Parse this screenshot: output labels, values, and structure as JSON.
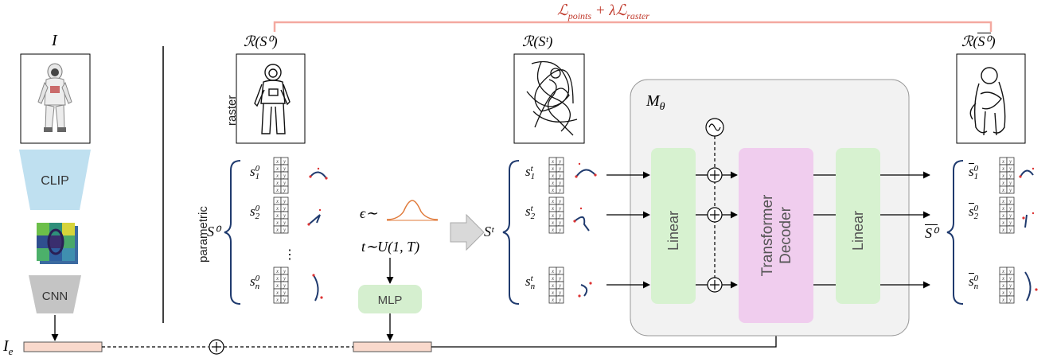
{
  "loss_label": "ℒ",
  "loss_points_sub": "points",
  "loss_plus_lambda": " + λℒ",
  "loss_raster_sub": "raster",
  "image_label": "I",
  "image_emb_label": "I",
  "image_emb_sub": "e",
  "render_s0": "ℛ(S⁰)",
  "render_st": "ℛ(Sᵗ)",
  "render_s0_hat_prefix": "ℛ(",
  "render_s0_hat_inner": "S⁰",
  "render_s0_hat_suffix": ")",
  "raster_label": "raster",
  "parametric_label": "parametric",
  "clip_label": "CLIP",
  "cnn_label": "CNN",
  "mlp_label": "MLP",
  "linear_label": "Linear",
  "transformer_line1": "Transformer",
  "transformer_line2": "Decoder",
  "model_label": "M",
  "model_sub": "θ",
  "S0": "S⁰",
  "St": "Sᵗ",
  "S0_hat": "S⁰",
  "s0_rows": [
    {
      "b": "s",
      "sup": "0",
      "sub": "1"
    },
    {
      "b": "s",
      "sup": "0",
      "sub": "2"
    },
    {
      "b": "s",
      "sup": "0",
      "sub": "n"
    }
  ],
  "st_rows": [
    {
      "b": "s",
      "sup": "t",
      "sub": "1"
    },
    {
      "b": "s",
      "sup": "t",
      "sub": "2"
    },
    {
      "b": "s",
      "sup": "t",
      "sub": "n"
    }
  ],
  "s0hat_rows": [
    {
      "b": "s",
      "sup": "0",
      "sub": "1"
    },
    {
      "b": "s",
      "sup": "0",
      "sub": "2"
    },
    {
      "b": "s",
      "sup": "0",
      "sub": "n"
    }
  ],
  "ellipsis": "⋮",
  "eps_label": "ϵ∼",
  "t_label": "t∼U(1, T)",
  "cell_x": "x",
  "cell_y": "y",
  "colors": {
    "loss": "#c0392b",
    "loss_bracket": "#f4a9a0",
    "clip": "#bfe0f0",
    "cnn": "#c4c4c4",
    "mlp": "#d5efcf",
    "linear": "#d7f2d0",
    "transformer": "#f0cdee",
    "model_bg": "#f2f2f2",
    "embedding": "#f9d9cc"
  }
}
